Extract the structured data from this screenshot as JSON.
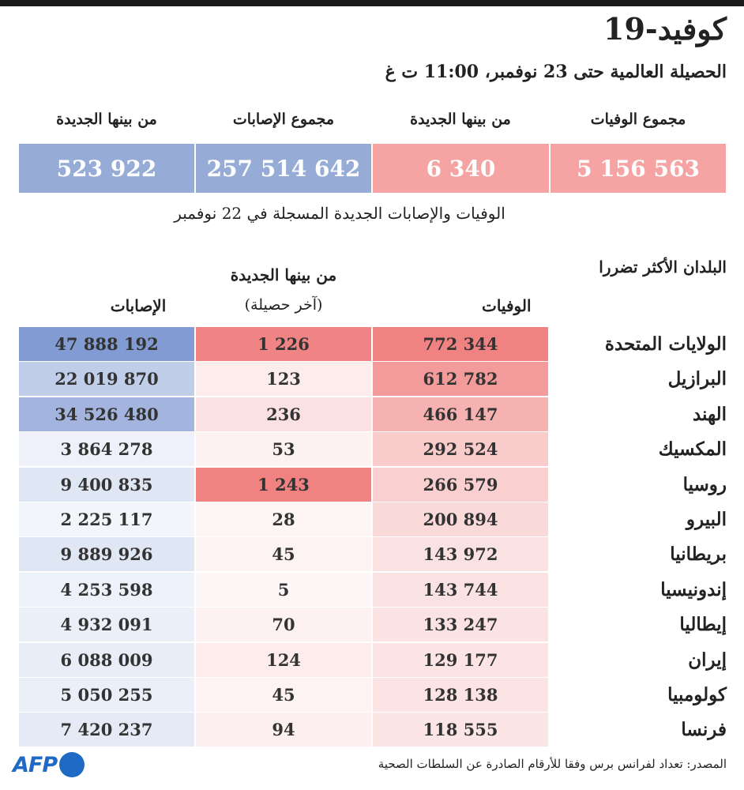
{
  "title": "كوفيد-19",
  "subtitle": "الحصيلة العالمية حتى 23 نوفمبر، 11:00 ت غ",
  "summary": {
    "total_deaths_label": "مجموع الوفيات",
    "total_deaths": "5 156 563",
    "new_deaths_label": "من بينها الجديدة",
    "new_deaths": "6 340",
    "total_cases_label": "مجموع الإصابات",
    "total_cases": "257 514 642",
    "new_cases_label": "من بينها الجديدة",
    "new_cases": "523 922"
  },
  "note": "الوفيات والإصابات الجديدة المسجلة في 22 نوفمبر",
  "table": {
    "section_title": "البلدان الأكثر تضررا",
    "col_deaths": "الوفيات",
    "col_new_1": "من بينها الجديدة",
    "col_new_2": "(آخر حصيلة)",
    "col_cases": "الإصابات"
  },
  "chart_data": {
    "type": "table",
    "title": "البلدان الأكثر تضررا",
    "columns": [
      "الوفيات",
      "من بينها الجديدة (آخر حصيلة)",
      "الإصابات"
    ],
    "rows": [
      {
        "country": "الولايات المتحدة",
        "deaths": "772 344",
        "new_deaths": "1 226",
        "cases": "47 888 192",
        "deaths_v": 772344,
        "new_v": 1226,
        "cases_v": 47888192
      },
      {
        "country": "البرازيل",
        "deaths": "612 782",
        "new_deaths": "123",
        "cases": "22 019 870",
        "deaths_v": 612782,
        "new_v": 123,
        "cases_v": 22019870
      },
      {
        "country": "الهند",
        "deaths": "466 147",
        "new_deaths": "236",
        "cases": "34 526 480",
        "deaths_v": 466147,
        "new_v": 236,
        "cases_v": 34526480
      },
      {
        "country": "المكسيك",
        "deaths": "292 524",
        "new_deaths": "53",
        "cases": "3 864 278",
        "deaths_v": 292524,
        "new_v": 53,
        "cases_v": 3864278
      },
      {
        "country": "روسيا",
        "deaths": "266 579",
        "new_deaths": "1 243",
        "cases": "9 400 835",
        "deaths_v": 266579,
        "new_v": 1243,
        "cases_v": 9400835
      },
      {
        "country": "البيرو",
        "deaths": "200 894",
        "new_deaths": "28",
        "cases": "2 225 117",
        "deaths_v": 200894,
        "new_v": 28,
        "cases_v": 2225117
      },
      {
        "country": "بريطانيا",
        "deaths": "143 972",
        "new_deaths": "45",
        "cases": "9 889 926",
        "deaths_v": 143972,
        "new_v": 45,
        "cases_v": 9889926
      },
      {
        "country": "إندونيسيا",
        "deaths": "143 744",
        "new_deaths": "5",
        "cases": "4 253 598",
        "deaths_v": 143744,
        "new_v": 5,
        "cases_v": 4253598
      },
      {
        "country": "إيطاليا",
        "deaths": "133 247",
        "new_deaths": "70",
        "cases": "4 932 091",
        "deaths_v": 133247,
        "new_v": 70,
        "cases_v": 4932091
      },
      {
        "country": "إيران",
        "deaths": "129 177",
        "new_deaths": "124",
        "cases": "6 088 009",
        "deaths_v": 129177,
        "new_v": 124,
        "cases_v": 6088009
      },
      {
        "country": "كولومبيا",
        "deaths": "128 138",
        "new_deaths": "45",
        "cases": "5 050 255",
        "deaths_v": 128138,
        "new_v": 45,
        "cases_v": 5050255
      },
      {
        "country": "فرنسا",
        "deaths": "118 555",
        "new_deaths": "94",
        "cases": "7 420 237",
        "deaths_v": 118555,
        "new_v": 94,
        "cases_v": 7420237
      }
    ]
  },
  "colors": {
    "deaths_strong": "#f09a9a",
    "deaths_box": "#f5a3a3",
    "cases_strong": "#96acd8",
    "cases_box": "#96acd6",
    "deaths_rgb": [
      240,
      130,
      130
    ],
    "cases_rgb": [
      130,
      155,
      210
    ]
  },
  "source": "المصدر: تعداد لفرانس برس وفقا للأرقام الصادرة عن السلطات الصحية",
  "logo": "AFP"
}
